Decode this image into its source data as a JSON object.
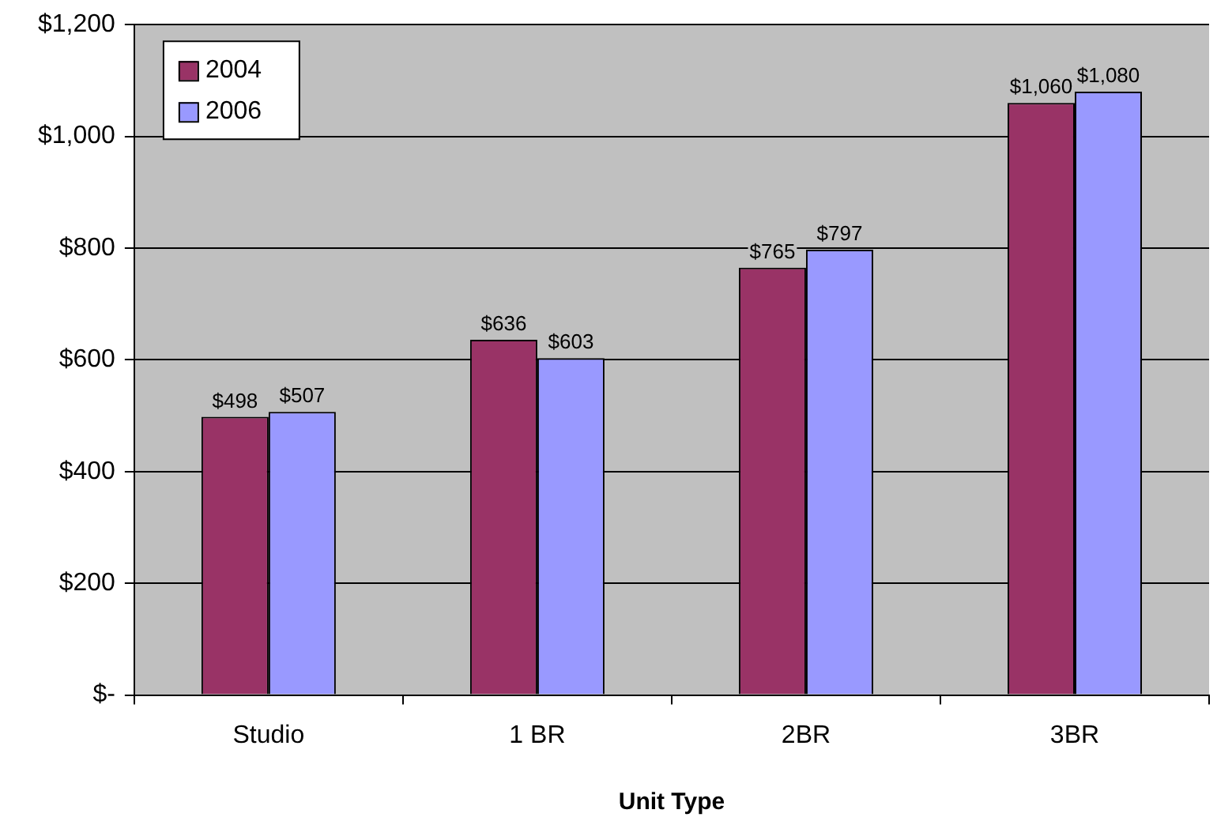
{
  "chart_data": {
    "type": "bar",
    "xlabel": "Unit Type",
    "categories": [
      "Studio",
      "1 BR",
      "2BR",
      "3BR"
    ],
    "series": [
      {
        "name": "2004",
        "color": "#993366",
        "values": [
          498,
          636,
          765,
          1060
        ],
        "value_labels": [
          "$498",
          "$636",
          "$765",
          "$1,060"
        ]
      },
      {
        "name": "2006",
        "color": "#9999ff",
        "values": [
          507,
          603,
          797,
          1080
        ],
        "value_labels": [
          "$507",
          "$603",
          "$797",
          "$1,080"
        ]
      }
    ],
    "ylim": [
      0,
      1200
    ],
    "yticks": [
      {
        "value": 0,
        "label": "$-"
      },
      {
        "value": 200,
        "label": "$200"
      },
      {
        "value": 400,
        "label": "$400"
      },
      {
        "value": 600,
        "label": "$600"
      },
      {
        "value": 800,
        "label": "$800"
      },
      {
        "value": 1000,
        "label": "$1,000"
      },
      {
        "value": 1200,
        "label": "$1,200"
      }
    ],
    "grid": "y",
    "legend": "top left"
  }
}
